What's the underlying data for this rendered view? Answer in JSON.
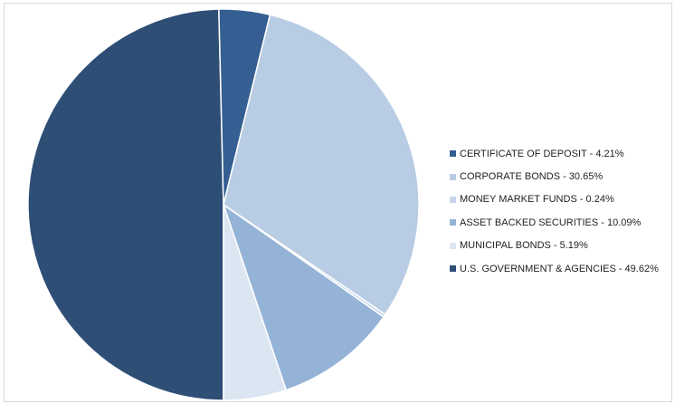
{
  "chart_data": {
    "type": "pie",
    "title": "",
    "start_slice": "U.S. GOVERNMENT & AGENCIES",
    "slices": [
      {
        "label": "CERTIFICATE OF DEPOSIT - 4.21%",
        "name": "CERTIFICATE OF DEPOSIT",
        "value": 4.21,
        "color": "#355f92"
      },
      {
        "label": "CORPORATE BONDS - 30.65%",
        "name": "CORPORATE BONDS",
        "value": 30.65,
        "color": "#b8cce4"
      },
      {
        "label": "MONEY MARKET FUNDS - 0.24%",
        "name": "MONEY MARKET FUNDS",
        "value": 0.24,
        "color": "#c4d4ea"
      },
      {
        "label": "ASSET BACKED SECURITIES - 10.09%",
        "name": "ASSET BACKED SECURITIES",
        "value": 10.09,
        "color": "#95b3d7"
      },
      {
        "label": "MUNICIPAL BONDS - 5.19%",
        "name": "MUNICIPAL BONDS",
        "value": 5.19,
        "color": "#dce6f2"
      },
      {
        "label": "U.S. GOVERNMENT & AGENCIES - 49.62%",
        "name": "U.S. GOVERNMENT & AGENCIES",
        "value": 49.62,
        "color": "#2e4e76"
      }
    ],
    "legend_position": "right"
  }
}
